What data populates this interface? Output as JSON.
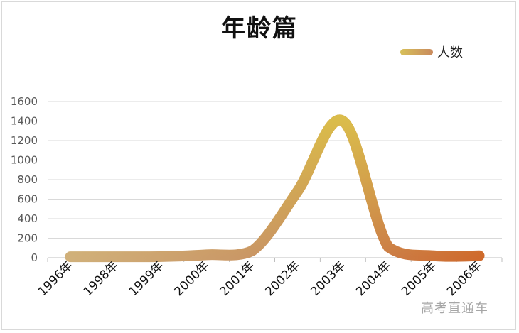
{
  "chart_data": {
    "type": "line",
    "title": "年龄篇",
    "categories": [
      "1996年",
      "1998年",
      "1999年",
      "2000年",
      "2001年",
      "2002年",
      "2003年",
      "2004年",
      "2005年",
      "2006年"
    ],
    "series": [
      {
        "name": "人数",
        "values": [
          10,
          10,
          12,
          30,
          70,
          680,
          1400,
          110,
          20,
          20
        ]
      }
    ],
    "ylim": [
      0,
      1600
    ],
    "yticks": [
      0,
      200,
      400,
      600,
      800,
      1000,
      1200,
      1400,
      1600
    ],
    "xlabel": "",
    "ylabel": "",
    "grid": true,
    "legend": "top-right",
    "colors": {
      "start": "#d0b86a",
      "peak": "#d9c050",
      "end": "#cf6a2c",
      "grid": "#d9d9d9",
      "axis": "#bfbfbf"
    }
  },
  "watermark": "高考直通车"
}
